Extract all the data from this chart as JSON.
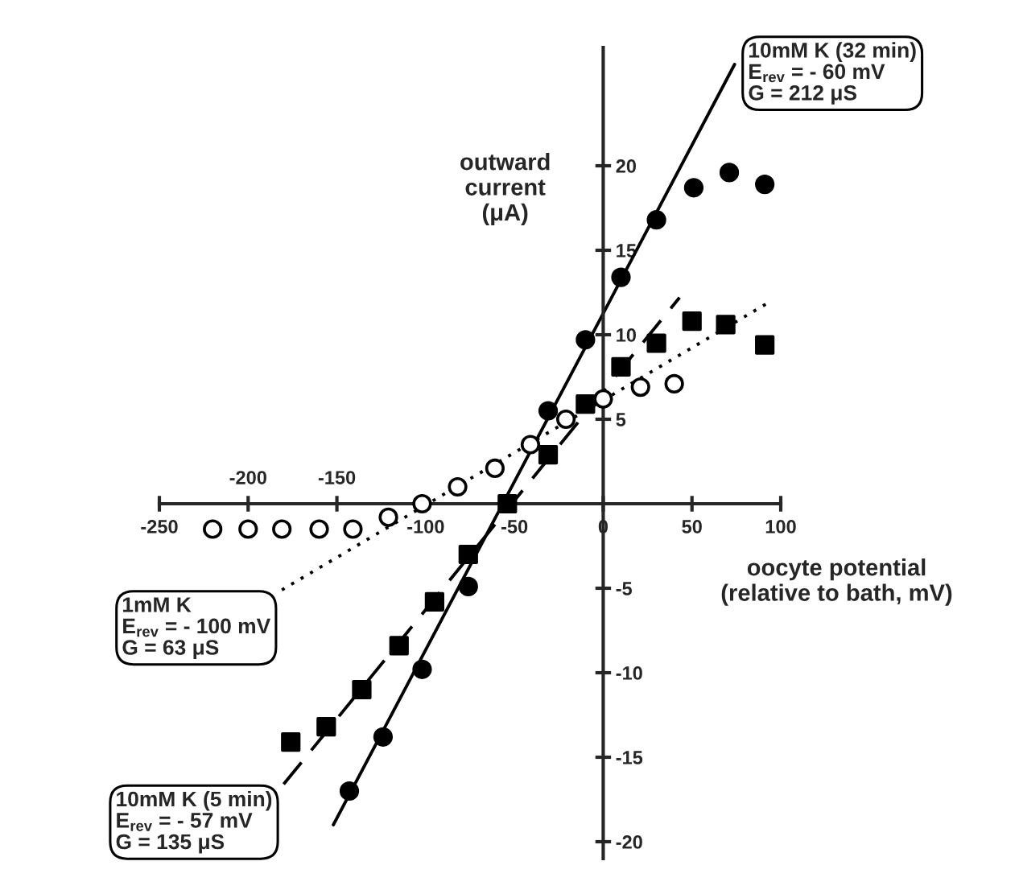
{
  "chart_data": {
    "type": "scatter",
    "xlabel": "oocyte potential\n(relative to bath, mV)",
    "ylabel": "outward\ncurrent\n(μA)",
    "xlim": [
      -250,
      100
    ],
    "ylim": [
      -21,
      27
    ],
    "xticks": [
      -250,
      {
        "value": -200,
        "label": null
      },
      {
        "value": -150,
        "label": null
      },
      -100,
      -50,
      0,
      50,
      100
    ],
    "x2lim": [
      -250,
      100
    ],
    "x2ticks": [
      -200,
      -150
    ],
    "yticks": [
      -20,
      -15,
      -10,
      -5,
      5,
      10,
      15,
      20
    ],
    "grid": false,
    "series": [
      {
        "marker": "circle",
        "color": "#000000",
        "x": [
          -143,
          -124,
          -102,
          -76,
          -31,
          -10,
          10,
          30,
          51,
          71,
          91
        ],
        "values": [
          -17.0,
          -13.8,
          -9.8,
          -4.9,
          5.5,
          9.7,
          13.4,
          16.8,
          18.7,
          19.6,
          18.9
        ]
      },
      {
        "type": "line",
        "line_style": "solid",
        "color": "#000000",
        "name": "10mM K (32 min)\nE$_{rev}$ = - 60 mV\nG = 212 μS",
        "x": [
          -152,
          74
        ],
        "values": [
          -19,
          26
        ]
      },
      {
        "marker": "square",
        "color": "#000000",
        "x": [
          -176,
          -156,
          -136,
          -115,
          -95,
          -76,
          -54,
          -31,
          -10,
          10,
          30,
          50,
          69,
          91
        ],
        "values": [
          -14.1,
          -13.2,
          -11.0,
          -8.4,
          -5.8,
          -3.0,
          0,
          2.9,
          5.9,
          8.1,
          9.5,
          10.8,
          10.6,
          9.4
        ]
      },
      {
        "type": "line",
        "line_style": "dashed",
        "color": "#000000",
        "name": "10mM K (5 min)\nE$_{rev}$ = - 57 mV\nG = 135 μS",
        "x": [
          -180,
          43
        ],
        "values": [
          -16.6,
          12.2
        ]
      },
      {
        "marker": "circle",
        "color": "#ffffff",
        "x": [
          -220,
          -200,
          -181,
          -160,
          -141,
          -121,
          -102,
          -82,
          -61,
          -41,
          -21,
          0,
          21,
          40
        ],
        "values": [
          -1.5,
          -1.5,
          -1.5,
          -1.5,
          -1.5,
          -0.8,
          0,
          1.0,
          2.1,
          3.5,
          5.0,
          6.2,
          6.9,
          7.1
        ]
      },
      {
        "type": "line",
        "line_style": "dotted",
        "color": "#000000",
        "name": "1mM K\nE$_{rev}$ = - 100 mV\nG = 63 μS",
        "x": [
          -181,
          93
        ],
        "values": [
          -5.1,
          11.9
        ]
      }
    ]
  }
}
